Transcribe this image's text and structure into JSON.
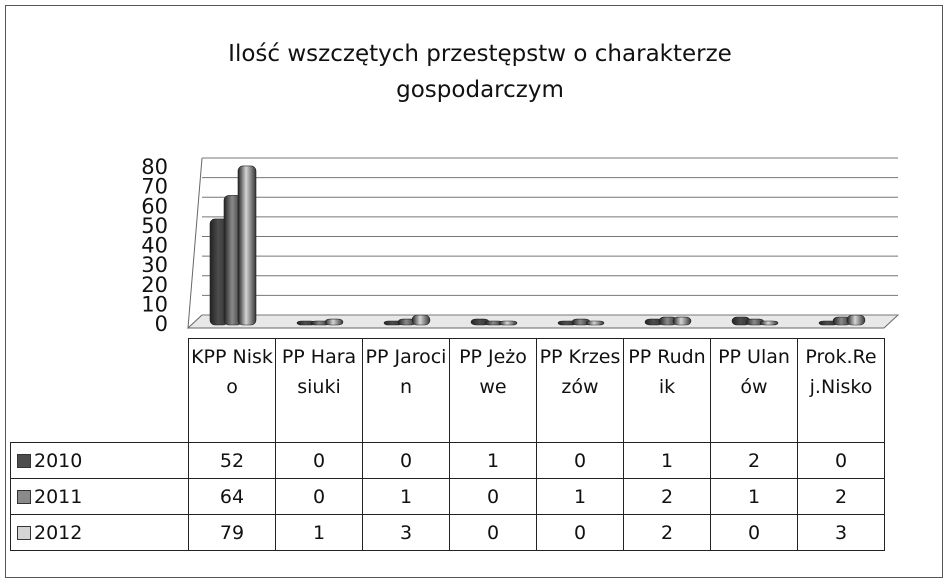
{
  "chart_data": {
    "type": "bar",
    "title": "Ilość wszczętych przestępstw o charakterze gospodarczym",
    "categories": [
      "KPP Nisko",
      "PP Harasiuki",
      "PP Jarocin",
      "PP Jeżowe",
      "PP Krzeszów",
      "PP Rudnik",
      "PP Ulanów",
      "Prok.Rej.Nisko"
    ],
    "series": [
      {
        "name": "2010",
        "color": "#4d4d4d",
        "values": [
          52,
          0,
          0,
          1,
          0,
          1,
          2,
          0
        ]
      },
      {
        "name": "2011",
        "color": "#8a8a8a",
        "values": [
          64,
          0,
          1,
          0,
          1,
          2,
          1,
          2
        ]
      },
      {
        "name": "2012",
        "color": "#d4d4d4",
        "values": [
          79,
          1,
          3,
          0,
          0,
          2,
          0,
          3
        ]
      }
    ],
    "ylim": [
      0,
      80
    ],
    "yticks": [
      0,
      10,
      20,
      30,
      40,
      50,
      60,
      70,
      80
    ],
    "grid": true
  }
}
